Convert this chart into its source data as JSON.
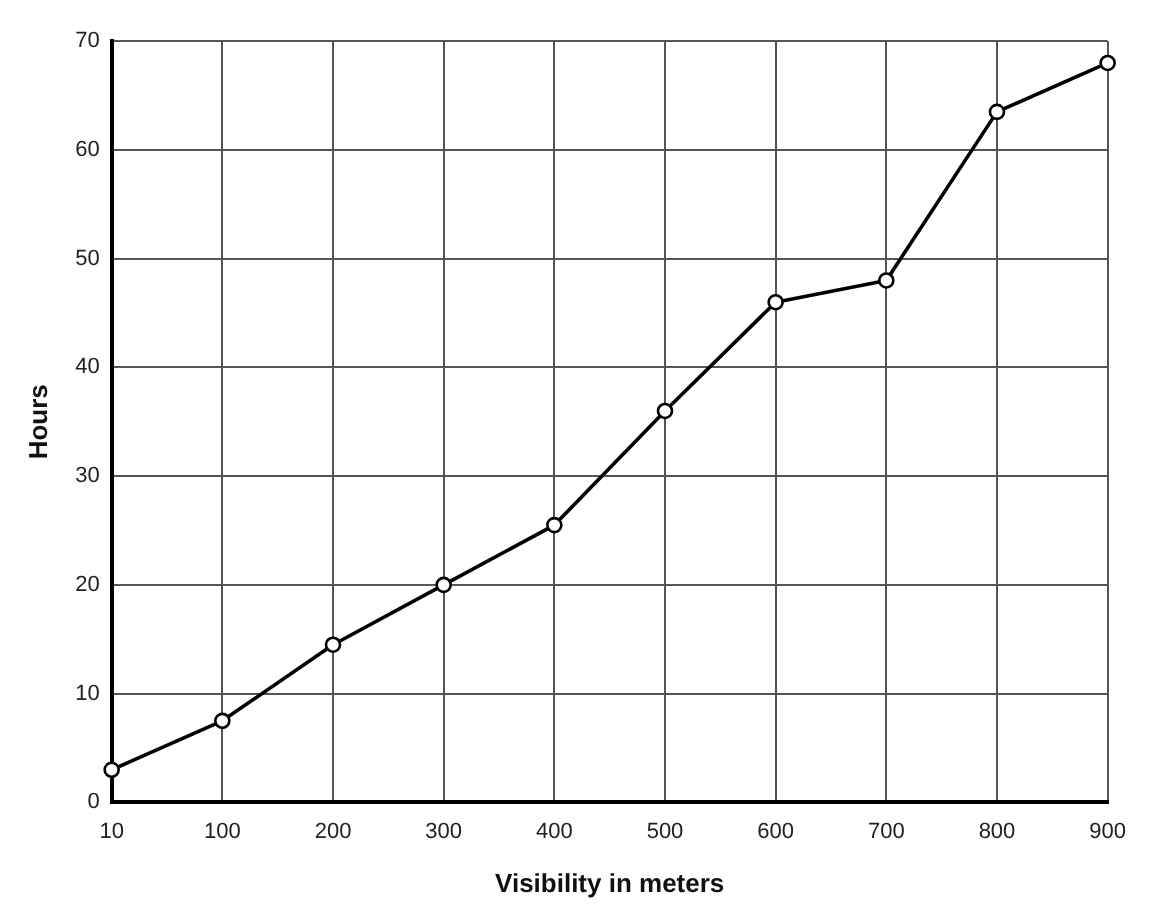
{
  "chart_data": {
    "type": "line",
    "xlabel": "Visibility in meters",
    "ylabel": "Hours",
    "categories": [
      "10",
      "100",
      "200",
      "300",
      "400",
      "500",
      "600",
      "700",
      "800",
      "900"
    ],
    "series": [
      {
        "color": "#000000",
        "values": [
          3,
          7.5,
          14.5,
          20,
          25.5,
          36,
          46,
          48,
          63.5,
          68
        ]
      }
    ],
    "ylim": [
      0,
      70
    ],
    "yticks": [
      0,
      10,
      20,
      30,
      40,
      50,
      60,
      70
    ],
    "grid": true,
    "marker": "circle",
    "line_style": "solid"
  }
}
